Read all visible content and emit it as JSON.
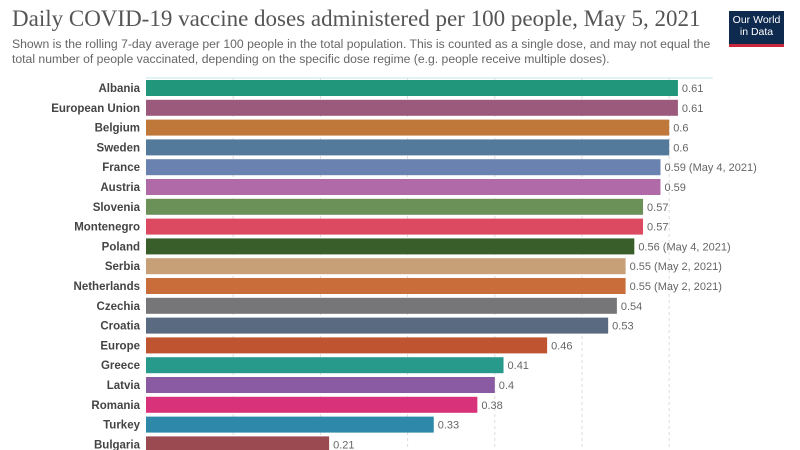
{
  "header": {
    "title": "Daily COVID-19 vaccine doses administered per 100 people, May 5, 2021",
    "subtitle": "Shown is the rolling 7-day average per 100 people in the total population. This is counted as a single dose, and may not equal the total number of people vaccinated, depending on the specific dose regime (e.g. people receive multiple doses).",
    "logo": "Our World in Data",
    "logo_line1": "Our World",
    "logo_line2": "in Data"
  },
  "chart_data": {
    "type": "bar",
    "orientation": "horizontal",
    "grid": true,
    "xlim": [
      0,
      0.65
    ],
    "categories": [
      "Albania",
      "European Union",
      "Belgium",
      "Sweden",
      "France",
      "Austria",
      "Slovenia",
      "Montenegro",
      "Poland",
      "Serbia",
      "Netherlands",
      "Czechia",
      "Croatia",
      "Europe",
      "Greece",
      "Latvia",
      "Romania",
      "Turkey",
      "Bulgaria"
    ],
    "values": [
      0.61,
      0.61,
      0.6,
      0.6,
      0.59,
      0.59,
      0.57,
      0.57,
      0.56,
      0.55,
      0.55,
      0.54,
      0.53,
      0.46,
      0.41,
      0.4,
      0.38,
      0.33,
      0.21
    ],
    "value_labels": [
      "0.61",
      "0.61",
      "0.6",
      "0.6",
      "0.59 (May 4, 2021)",
      "0.59",
      "0.57",
      "0.57",
      "0.56 (May 4, 2021)",
      "0.55 (May 2, 2021)",
      "0.55 (May 2, 2021)",
      "0.54",
      "0.53",
      "0.46",
      "0.41",
      "0.4",
      "0.38",
      "0.33",
      "0.21"
    ],
    "colors": [
      "#22967a",
      "#9b5a7c",
      "#c0783a",
      "#537a9a",
      "#6a82b0",
      "#b06aa8",
      "#6b9058",
      "#dc4a62",
      "#3a5e2a",
      "#c8a078",
      "#c96e3a",
      "#767678",
      "#5a6a80",
      "#bf5530",
      "#279a8c",
      "#8a5aa2",
      "#d8337a",
      "#2e88aa",
      "#9a4a50"
    ]
  }
}
